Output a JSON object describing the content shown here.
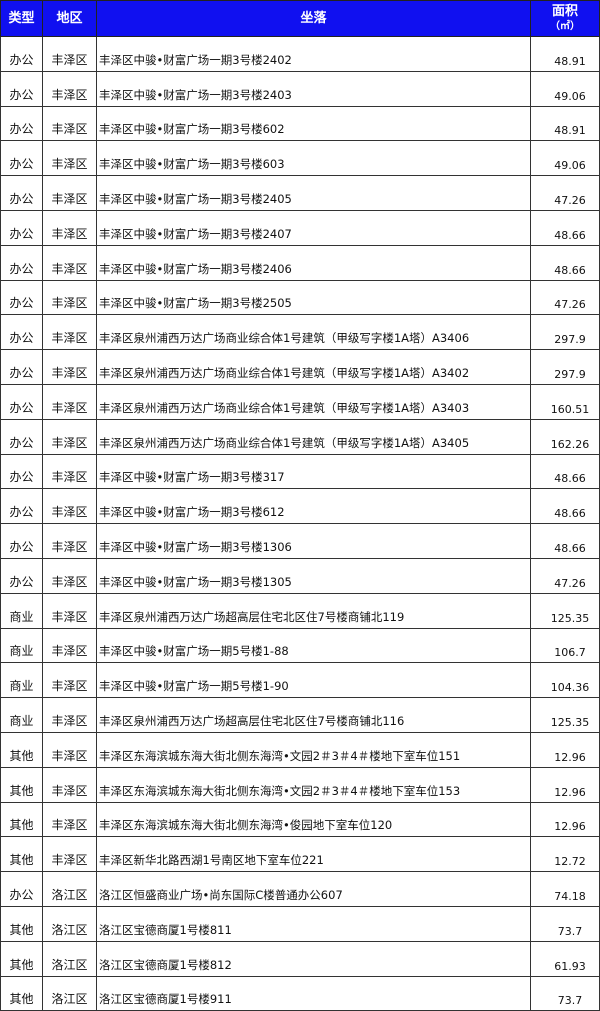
{
  "header": {
    "type": "类型",
    "district": "地区",
    "location": "坐落",
    "area": "面积",
    "area_unit": "（㎡）"
  },
  "colors": {
    "header_bg": "#1010f0",
    "header_text": "#ffffff"
  },
  "rows": [
    {
      "type": "办公",
      "district": "丰泽区",
      "location": "丰泽区中骏•财富广场一期3号楼2402",
      "area": "48.91"
    },
    {
      "type": "办公",
      "district": "丰泽区",
      "location": "丰泽区中骏•财富广场一期3号楼2403",
      "area": "49.06"
    },
    {
      "type": "办公",
      "district": "丰泽区",
      "location": "丰泽区中骏•财富广场一期3号楼602",
      "area": "48.91"
    },
    {
      "type": "办公",
      "district": "丰泽区",
      "location": "丰泽区中骏•财富广场一期3号楼603",
      "area": "49.06"
    },
    {
      "type": "办公",
      "district": "丰泽区",
      "location": "丰泽区中骏•财富广场一期3号楼2405",
      "area": "47.26"
    },
    {
      "type": "办公",
      "district": "丰泽区",
      "location": "丰泽区中骏•财富广场一期3号楼2407",
      "area": "48.66"
    },
    {
      "type": "办公",
      "district": "丰泽区",
      "location": "丰泽区中骏•财富广场一期3号楼2406",
      "area": "48.66"
    },
    {
      "type": "办公",
      "district": "丰泽区",
      "location": "丰泽区中骏•财富广场一期3号楼2505",
      "area": "47.26"
    },
    {
      "type": "办公",
      "district": "丰泽区",
      "location": "丰泽区泉州浦西万达广场商业综合体1号建筑（甲级写字楼1A塔）A3406",
      "area": "297.9"
    },
    {
      "type": "办公",
      "district": "丰泽区",
      "location": "丰泽区泉州浦西万达广场商业综合体1号建筑（甲级写字楼1A塔）A3402",
      "area": "297.9"
    },
    {
      "type": "办公",
      "district": "丰泽区",
      "location": "丰泽区泉州浦西万达广场商业综合体1号建筑（甲级写字楼1A塔）A3403",
      "area": "160.51"
    },
    {
      "type": "办公",
      "district": "丰泽区",
      "location": "丰泽区泉州浦西万达广场商业综合体1号建筑（甲级写字楼1A塔）A3405",
      "area": "162.26"
    },
    {
      "type": "办公",
      "district": "丰泽区",
      "location": "丰泽区中骏•财富广场一期3号楼317",
      "area": "48.66"
    },
    {
      "type": "办公",
      "district": "丰泽区",
      "location": "丰泽区中骏•财富广场一期3号楼612",
      "area": "48.66"
    },
    {
      "type": "办公",
      "district": "丰泽区",
      "location": "丰泽区中骏•财富广场一期3号楼1306",
      "area": "48.66"
    },
    {
      "type": "办公",
      "district": "丰泽区",
      "location": "丰泽区中骏•财富广场一期3号楼1305",
      "area": "47.26"
    },
    {
      "type": "商业",
      "district": "丰泽区",
      "location": "丰泽区泉州浦西万达广场超高层住宅北区住7号楼商铺北119",
      "area": "125.35"
    },
    {
      "type": "商业",
      "district": "丰泽区",
      "location": "丰泽区中骏•财富广场一期5号楼1-88",
      "area": "106.7"
    },
    {
      "type": "商业",
      "district": "丰泽区",
      "location": "丰泽区中骏•财富广场一期5号楼1-90",
      "area": "104.36"
    },
    {
      "type": "商业",
      "district": "丰泽区",
      "location": "丰泽区泉州浦西万达广场超高层住宅北区住7号楼商铺北116",
      "area": "125.35"
    },
    {
      "type": "其他",
      "district": "丰泽区",
      "location": "丰泽区东海滨城东海大街北侧东海湾•文园2＃3＃4＃楼地下室车位151",
      "area": "12.96"
    },
    {
      "type": "其他",
      "district": "丰泽区",
      "location": "丰泽区东海滨城东海大街北侧东海湾•文园2＃3＃4＃楼地下室车位153",
      "area": "12.96"
    },
    {
      "type": "其他",
      "district": "丰泽区",
      "location": "丰泽区东海滨城东海大街北侧东海湾•俊园地下室车位120",
      "area": "12.96"
    },
    {
      "type": "其他",
      "district": "丰泽区",
      "location": "丰泽区新华北路西湖1号南区地下室车位221",
      "area": "12.72"
    },
    {
      "type": "办公",
      "district": "洛江区",
      "location": "洛江区恒盛商业广场•尚东国际C楼普通办公607",
      "area": "74.18"
    },
    {
      "type": "其他",
      "district": "洛江区",
      "location": "洛江区宝德商厦1号楼811",
      "area": "73.7"
    },
    {
      "type": "其他",
      "district": "洛江区",
      "location": "洛江区宝德商厦1号楼812",
      "area": "61.93"
    },
    {
      "type": "其他",
      "district": "洛江区",
      "location": "洛江区宝德商厦1号楼911",
      "area": "73.7"
    }
  ]
}
